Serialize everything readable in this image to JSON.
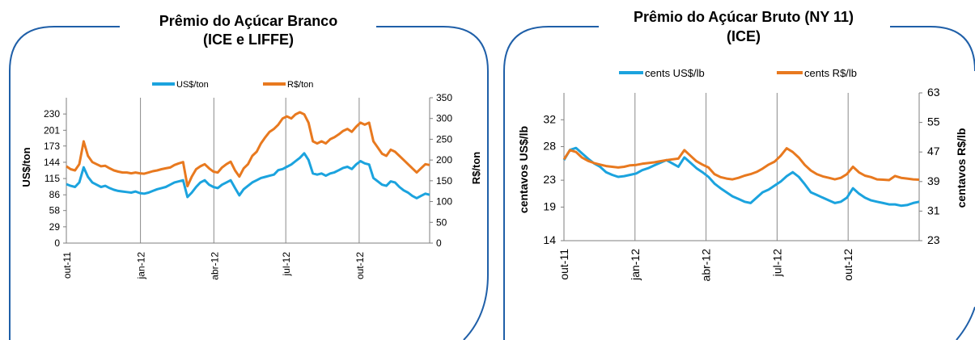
{
  "colors": {
    "usd": "#1BA3DE",
    "brl": "#E8791F",
    "frame": "#1F5FA8",
    "grid": "#7f7f7f"
  },
  "chart_data": [
    {
      "type": "line",
      "title_lines": [
        "Prêmio do Açúcar Branco",
        "(ICE e LIFFE)"
      ],
      "ylabel": "US$/ton",
      "y2label": "R$/ton",
      "y_ticks": [
        "0",
        "29",
        "58",
        "86",
        "115",
        "144",
        "173",
        "201",
        "230"
      ],
      "y2_ticks": [
        "0",
        "50",
        "100",
        "150",
        "200",
        "250",
        "300",
        "350"
      ],
      "ylim": [
        0,
        259
      ],
      "y2lim": [
        0,
        350
      ],
      "x_ticks": [
        "out-11",
        "jan-12",
        "abr-12",
        "jul-12",
        "out-12"
      ],
      "grid": "vertical",
      "legend_position": "top",
      "series": [
        {
          "name": "US$/ton",
          "axis": "left",
          "values": [
            105,
            102,
            100,
            108,
            135,
            118,
            108,
            104,
            100,
            102,
            98,
            95,
            93,
            92,
            91,
            90,
            92,
            89,
            88,
            90,
            93,
            96,
            98,
            100,
            104,
            108,
            110,
            112,
            82,
            90,
            100,
            108,
            112,
            104,
            100,
            98,
            104,
            108,
            112,
            98,
            85,
            96,
            102,
            108,
            112,
            116,
            118,
            120,
            122,
            130,
            132,
            136,
            140,
            146,
            152,
            160,
            148,
            124,
            122,
            124,
            120,
            124,
            126,
            130,
            134,
            136,
            132,
            140,
            146,
            142,
            140,
            116,
            110,
            104,
            102,
            110,
            108,
            100,
            94,
            90,
            84,
            80,
            84,
            88,
            86
          ]
        },
        {
          "name": "R$/ton",
          "axis": "right",
          "values": [
            185,
            178,
            175,
            190,
            245,
            210,
            195,
            190,
            185,
            186,
            180,
            175,
            172,
            170,
            170,
            168,
            170,
            168,
            167,
            170,
            173,
            175,
            178,
            180,
            182,
            188,
            192,
            195,
            137,
            160,
            178,
            185,
            190,
            180,
            172,
            170,
            182,
            190,
            196,
            175,
            160,
            180,
            190,
            210,
            220,
            240,
            255,
            268,
            275,
            285,
            300,
            305,
            300,
            310,
            315,
            310,
            290,
            245,
            240,
            245,
            240,
            250,
            255,
            262,
            270,
            275,
            268,
            280,
            290,
            285,
            290,
            245,
            230,
            215,
            210,
            225,
            220,
            210,
            200,
            190,
            180,
            170,
            180,
            190,
            188
          ]
        }
      ]
    },
    {
      "type": "line",
      "title_lines": [
        "Prêmio do Açúcar Bruto (NY 11)",
        "(ICE)"
      ],
      "ylabel": "centavos  US$/lb",
      "y2label": "centavos  R$/lb",
      "y_ticks": [
        "14",
        "19",
        "23",
        "28",
        "32"
      ],
      "y2_ticks": [
        "23",
        "31",
        "39",
        "47",
        "55",
        "63"
      ],
      "ylim": [
        14,
        36
      ],
      "y2lim": [
        23,
        63
      ],
      "x_ticks": [
        "out-11",
        "jan-12",
        "abr-12",
        "jul-12",
        "out-12"
      ],
      "grid": "vertical",
      "legend_position": "top",
      "series": [
        {
          "name": "cents US$/lb",
          "axis": "left",
          "values": [
            26.0,
            27.5,
            27.8,
            27.0,
            26.2,
            25.5,
            25.0,
            24.2,
            23.8,
            23.5,
            23.6,
            23.8,
            24.0,
            24.5,
            24.8,
            25.2,
            25.6,
            26.0,
            25.5,
            25.0,
            26.4,
            25.6,
            24.8,
            24.2,
            23.5,
            22.5,
            21.8,
            21.2,
            20.6,
            20.2,
            19.8,
            19.6,
            20.4,
            21.2,
            21.6,
            22.2,
            22.8,
            23.6,
            24.2,
            23.5,
            22.4,
            21.2,
            20.8,
            20.4,
            20.0,
            19.6,
            19.8,
            20.4,
            21.8,
            21.0,
            20.4,
            20.0,
            19.8,
            19.6,
            19.4,
            19.4,
            19.2,
            19.3,
            19.6,
            19.8
          ]
        },
        {
          "name": "cents R$/lb",
          "axis": "right",
          "values": [
            45.0,
            47.5,
            47.0,
            45.5,
            44.6,
            44.0,
            43.6,
            43.2,
            43.0,
            42.8,
            43.0,
            43.4,
            43.5,
            43.8,
            44.0,
            44.2,
            44.5,
            44.8,
            45.0,
            45.2,
            47.5,
            46.0,
            44.5,
            43.6,
            42.8,
            41.0,
            40.2,
            39.8,
            39.6,
            40.0,
            40.6,
            41.0,
            41.6,
            42.5,
            43.6,
            44.4,
            46.0,
            48.0,
            47.0,
            45.5,
            43.5,
            42.0,
            41.0,
            40.4,
            40.0,
            39.6,
            40.0,
            41.0,
            43.0,
            41.5,
            40.6,
            40.2,
            39.6,
            39.5,
            39.4,
            40.5,
            40.0,
            39.8,
            39.6,
            39.5
          ]
        }
      ]
    }
  ]
}
